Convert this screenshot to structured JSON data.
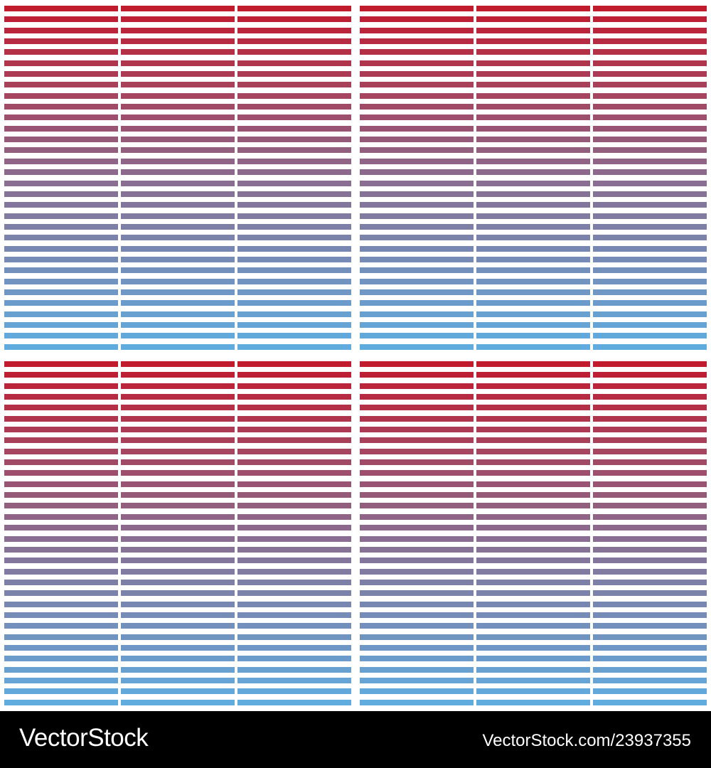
{
  "pattern": {
    "description": "Tiled horizontal stripe pattern with vertical gradient from red to light blue",
    "tiles_grid": [
      2,
      2
    ],
    "columns_per_tile": 3,
    "stripes_per_column": 32,
    "colors": {
      "top": "#c11b2e",
      "middle": "#8a6c8f",
      "bottom": "#60acdf",
      "background": "#ffffff"
    }
  },
  "footer": {
    "brand": "VectorStock",
    "url": "VectorStock.com/23937355",
    "background": "#000000",
    "text_color": "#ffffff"
  }
}
